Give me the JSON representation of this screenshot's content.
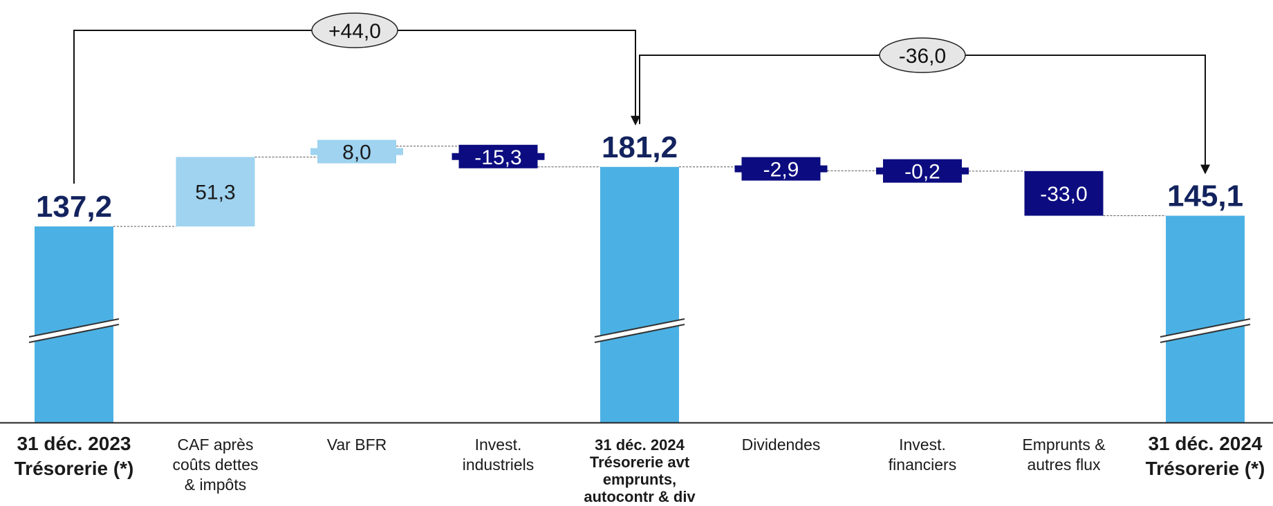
{
  "chart_data": {
    "type": "bar",
    "subtype": "waterfall",
    "title": "",
    "xlabel": "",
    "ylabel": "",
    "axis_break_on_totals": true,
    "colors": {
      "total": "#4bb1e4",
      "increase": "#9fd3f0",
      "decrease": "#0c0c80",
      "connector": "#555555",
      "bubble_fill": "#e6e6e6"
    },
    "categories": [
      [
        "31 déc. 2023",
        "Trésorerie (*)"
      ],
      [
        "CAF après",
        "coûts dettes",
        "& impôts"
      ],
      [
        "Var BFR"
      ],
      [
        "Invest.",
        "industriels"
      ],
      [
        "31 déc. 2024",
        "Trésorerie avt",
        "emprunts,",
        "autocontr & div"
      ],
      [
        "Dividendes"
      ],
      [
        "Invest.",
        "financiers"
      ],
      [
        "Emprunts &",
        "autres flux"
      ],
      [
        "31 déc. 2024",
        "Trésorerie (*)"
      ]
    ],
    "bars": [
      {
        "kind": "total",
        "value": 137.2,
        "label": "137,2"
      },
      {
        "kind": "delta",
        "value": 51.3,
        "label": "51,3"
      },
      {
        "kind": "delta",
        "value": 8.0,
        "label": "8,0"
      },
      {
        "kind": "delta",
        "value": -15.3,
        "label": "-15,3"
      },
      {
        "kind": "total",
        "value": 181.2,
        "label": "181,2"
      },
      {
        "kind": "delta",
        "value": -2.9,
        "label": "-2,9"
      },
      {
        "kind": "delta",
        "value": -0.2,
        "label": "-0,2"
      },
      {
        "kind": "delta",
        "value": -33.0,
        "label": "-33,0"
      },
      {
        "kind": "total",
        "value": 145.1,
        "label": "145,1"
      }
    ],
    "annotations": [
      {
        "from": 0,
        "to": 4,
        "label": "+44,0"
      },
      {
        "from": 4,
        "to": 8,
        "label": "-36,0"
      }
    ]
  }
}
